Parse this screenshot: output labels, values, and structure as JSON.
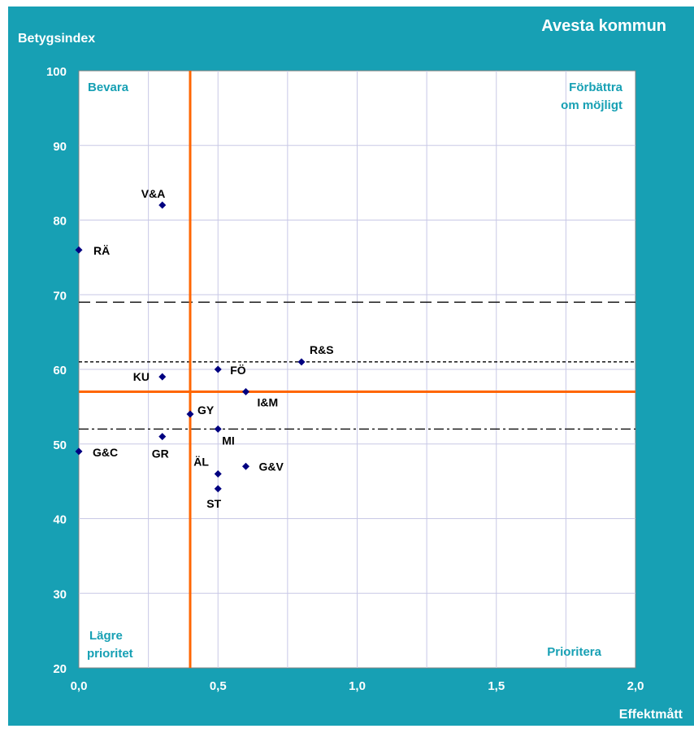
{
  "header": {
    "title": "Avesta kommun",
    "ylabel": "Betygsindex",
    "xlabel": "Effektmått"
  },
  "quadrants": {
    "top_left": "Bevara",
    "top_right_1": "Förbättra",
    "top_right_2": "om möjligt",
    "bottom_left_1": "Lägre",
    "bottom_left_2": "prioritet",
    "bottom_right": "Prioritera"
  },
  "colors": {
    "frame": "#17a0b4",
    "plot_bg": "#ffffff",
    "grid": "#c8c8e6",
    "marker": "#000080",
    "threshold": "#ff6600",
    "quadrant_text": "#17a0b4"
  },
  "chart_data": {
    "type": "scatter",
    "title": "Avesta kommun",
    "xlabel": "Effektmått",
    "ylabel": "Betygsindex",
    "xlim": [
      0,
      2.0
    ],
    "ylim": [
      20,
      100
    ],
    "xticks": [
      "0,0",
      "0,5",
      "1,0",
      "1,5",
      "2,0"
    ],
    "yticks": [
      "20",
      "30",
      "40",
      "50",
      "60",
      "70",
      "80",
      "90",
      "100"
    ],
    "grid": true,
    "points": [
      {
        "label": "V&A",
        "x": 0.3,
        "y": 82
      },
      {
        "label": "RÄ",
        "x": 0.0,
        "y": 76
      },
      {
        "label": "R&S",
        "x": 0.8,
        "y": 61
      },
      {
        "label": "FÖ",
        "x": 0.5,
        "y": 60
      },
      {
        "label": "KU",
        "x": 0.3,
        "y": 59
      },
      {
        "label": "I&M",
        "x": 0.6,
        "y": 57
      },
      {
        "label": "GY",
        "x": 0.4,
        "y": 54
      },
      {
        "label": "MI",
        "x": 0.5,
        "y": 52
      },
      {
        "label": "GR",
        "x": 0.3,
        "y": 51
      },
      {
        "label": "G&C",
        "x": 0.0,
        "y": 49
      },
      {
        "label": "G&V",
        "x": 0.6,
        "y": 47
      },
      {
        "label": "ÄL",
        "x": 0.5,
        "y": 46
      },
      {
        "label": "ST",
        "x": 0.5,
        "y": 44
      }
    ],
    "threshold_x": 0.4,
    "threshold_y": 57,
    "reference_lines": [
      {
        "y": 69,
        "style": "long-dash"
      },
      {
        "y": 61,
        "style": "short-dash"
      },
      {
        "y": 52,
        "style": "dash-dot"
      }
    ]
  }
}
